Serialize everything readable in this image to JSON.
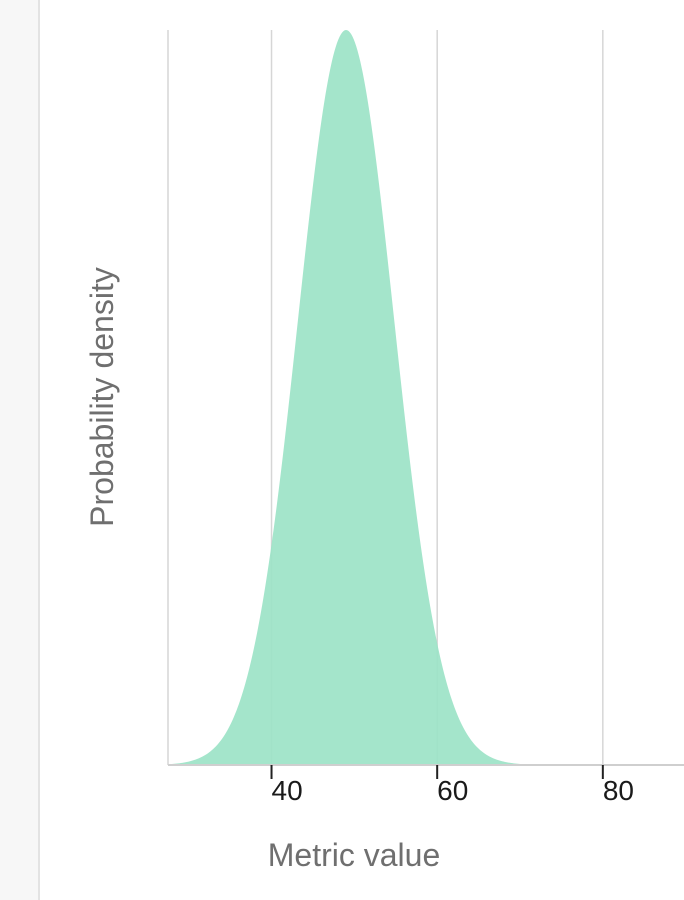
{
  "chart_data": {
    "type": "area",
    "title": "",
    "xlabel": "Metric value",
    "ylabel": "Probability density",
    "xlim": [
      27.5,
      89.8
    ],
    "ylim": [
      0,
      1
    ],
    "x_ticks": [
      "40",
      "60",
      "80"
    ],
    "grid": true,
    "series": [
      {
        "distribution": "normal",
        "mean": 49,
        "std": 5.8,
        "color": "#9ce3c7"
      }
    ]
  }
}
